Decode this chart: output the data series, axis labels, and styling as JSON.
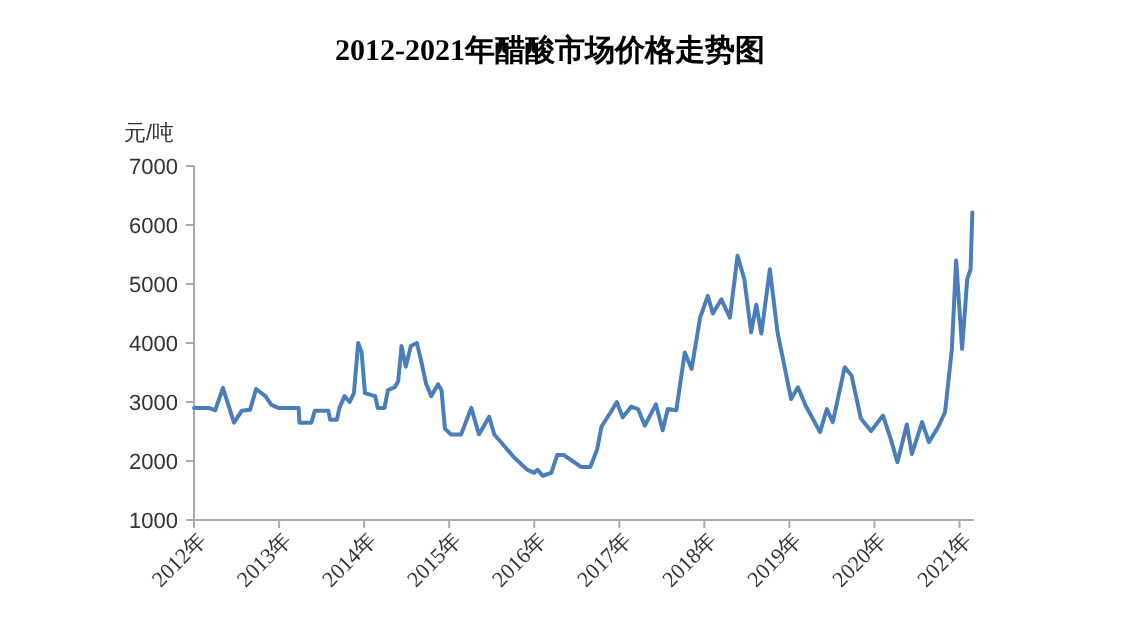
{
  "chart_data": {
    "type": "line",
    "title": "2012-2021年醋酸市场价格走势图",
    "ylabel": "元/吨",
    "x": [
      2012.0,
      2012.17,
      2012.25,
      2012.34,
      2012.47,
      2012.56,
      2012.66,
      2012.73,
      2012.84,
      2012.91,
      2012.99,
      2013.23,
      2013.24,
      2013.38,
      2013.42,
      2013.58,
      2013.6,
      2013.68,
      2013.71,
      2013.77,
      2013.83,
      2013.88,
      2013.93,
      2013.97,
      2014.01,
      2014.13,
      2014.16,
      2014.24,
      2014.28,
      2014.36,
      2014.4,
      2014.44,
      2014.49,
      2014.55,
      2014.62,
      2014.67,
      2014.73,
      2014.79,
      2014.87,
      2014.91,
      2014.95,
      2015.02,
      2015.14,
      2015.26,
      2015.35,
      2015.47,
      2015.53,
      2015.65,
      2015.77,
      2015.92,
      2016.0,
      2016.04,
      2016.1,
      2016.2,
      2016.27,
      2016.35,
      2016.45,
      2016.55,
      2016.66,
      2016.74,
      2016.79,
      2016.9,
      2016.97,
      2017.04,
      2017.14,
      2017.22,
      2017.3,
      2017.43,
      2017.51,
      2017.57,
      2017.67,
      2017.77,
      2017.85,
      2017.95,
      2018.04,
      2018.1,
      2018.2,
      2018.3,
      2018.39,
      2018.47,
      2018.55,
      2018.61,
      2018.67,
      2018.77,
      2018.86,
      2019.02,
      2019.1,
      2019.19,
      2019.36,
      2019.44,
      2019.51,
      2019.65,
      2019.73,
      2019.84,
      2019.96,
      2020.1,
      2020.19,
      2020.27,
      2020.38,
      2020.44,
      2020.56,
      2020.64,
      2020.75,
      2020.83,
      2020.91,
      2020.96,
      2021.03,
      2021.09,
      2021.13,
      2021.15
    ],
    "series": [
      {
        "color": "#4a7ebb",
        "values": [
          2900,
          2900,
          2860,
          3240,
          2650,
          2850,
          2870,
          3220,
          3100,
          2950,
          2900,
          2900,
          2650,
          2650,
          2850,
          2850,
          2700,
          2700,
          2900,
          3100,
          3000,
          3150,
          4000,
          3850,
          3150,
          3100,
          2900,
          2900,
          3200,
          3250,
          3350,
          3950,
          3600,
          3950,
          4000,
          3700,
          3300,
          3100,
          3300,
          3200,
          2550,
          2450,
          2450,
          2900,
          2450,
          2750,
          2450,
          2250,
          2050,
          1850,
          1800,
          1850,
          1750,
          1800,
          2100,
          2100,
          2000,
          1900,
          1900,
          2200,
          2580,
          2830,
          3000,
          2740,
          2920,
          2880,
          2600,
          2960,
          2520,
          2880,
          2860,
          3840,
          3560,
          4430,
          4800,
          4500,
          4740,
          4430,
          5480,
          5080,
          4180,
          4650,
          4160,
          5250,
          4180,
          3050,
          3250,
          2940,
          2490,
          2880,
          2660,
          3590,
          3450,
          2720,
          2510,
          2770,
          2380,
          1980,
          2620,
          2120,
          2660,
          2320,
          2580,
          2830,
          3900,
          5400,
          3900,
          5080,
          5250,
          6210
        ]
      }
    ],
    "xlim": [
      2012,
      2021.17
    ],
    "xticks": [
      {
        "value": 2012,
        "label": "2012年"
      },
      {
        "value": 2013,
        "label": "2013年"
      },
      {
        "value": 2014,
        "label": "2014年"
      },
      {
        "value": 2015,
        "label": "2015年"
      },
      {
        "value": 2016,
        "label": "2016年"
      },
      {
        "value": 2017,
        "label": "2017年"
      },
      {
        "value": 2018,
        "label": "2018年"
      },
      {
        "value": 2019,
        "label": "2019年"
      },
      {
        "value": 2020,
        "label": "2020年"
      },
      {
        "value": 2021,
        "label": "2021年"
      }
    ],
    "ylim": [
      1000,
      7000
    ],
    "yticks": [
      1000,
      2000,
      3000,
      4000,
      5000,
      6000,
      7000
    ],
    "grid": false,
    "marker": "none",
    "line_style": "solid"
  }
}
